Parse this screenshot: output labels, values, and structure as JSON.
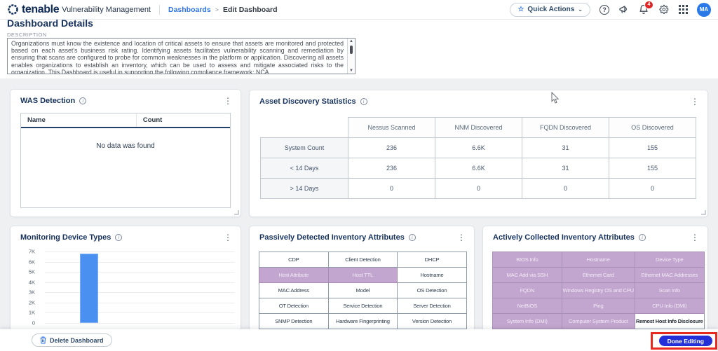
{
  "nav": {
    "brand": "tenable",
    "product": "Vulnerability Management",
    "breadcrumb": {
      "parent": "Dashboards",
      "separator": ">",
      "current": "Edit Dashboard"
    },
    "quick_actions_label": "Quick Actions",
    "star_glyph": "☆",
    "chevron_glyph": "⌄",
    "help_glyph": "?",
    "notification_count": "4",
    "avatar_initials": "MA"
  },
  "details": {
    "title": "Dashboard Details",
    "description_label": "DESCRIPTION",
    "description_text": "Organizations must know the existence and location of critical assets to ensure that assets are monitored and protected based on each asset's business risk rating. Identifying assets facilitates vulnerability scanning and remediation by ensuring that scans are configured to probe for common weaknesses in the platform or application. Discovering all assets enables organizations to establish an inventory, which can be used to assess and mitigate associated risks to the organization. This Dashboard is useful in supporting the following compliance framework: NCA.",
    "scroll_up_glyph": "▲",
    "scroll_down_glyph": "▼"
  },
  "widgets": {
    "kebab_glyph": "⋮",
    "info_glyph": "i",
    "was_detection": {
      "title": "WAS Detection",
      "columns": [
        "Name",
        "Count"
      ],
      "empty_message": "No data was found"
    },
    "asset_discovery": {
      "title": "Asset Discovery Statistics",
      "columns": [
        "Nessus Scanned",
        "NNM Discovered",
        "FQDN Discovered",
        "OS Discovered"
      ],
      "rows": [
        {
          "label": "System Count",
          "values": [
            "236",
            "6.6K",
            "31",
            "155"
          ]
        },
        {
          "label": "< 14 Days",
          "values": [
            "236",
            "6.6K",
            "31",
            "155"
          ]
        },
        {
          "label": "> 14 Days",
          "values": [
            "0",
            "0",
            "0",
            "0"
          ]
        }
      ]
    },
    "monitoring": {
      "title": "Monitoring Device Types"
    },
    "passive": {
      "title": "Passively Detected Inventory Attributes",
      "cells": [
        {
          "label": "CDP",
          "highlighted": false
        },
        {
          "label": "Client Detection",
          "highlighted": false
        },
        {
          "label": "DHCP",
          "highlighted": false
        },
        {
          "label": "Host Attribute",
          "highlighted": true
        },
        {
          "label": "Host TTL",
          "highlighted": true
        },
        {
          "label": "Hostname",
          "highlighted": false
        },
        {
          "label": "MAC Address",
          "highlighted": false
        },
        {
          "label": "Model",
          "highlighted": false
        },
        {
          "label": "OS Detection",
          "highlighted": false
        },
        {
          "label": "OT Detection",
          "highlighted": false
        },
        {
          "label": "Service Detection",
          "highlighted": false
        },
        {
          "label": "Server Detection",
          "highlighted": false
        },
        {
          "label": "SNMP Detection",
          "highlighted": false
        },
        {
          "label": "Hardware Fingerprinting",
          "highlighted": false
        },
        {
          "label": "Version Detection",
          "highlighted": false
        }
      ]
    },
    "active": {
      "title": "Actively Collected Inventory Attributes",
      "cells": [
        {
          "label": "BIOS Info",
          "highlighted": true
        },
        {
          "label": "Hostname",
          "highlighted": true
        },
        {
          "label": "Device Type",
          "highlighted": true
        },
        {
          "label": "MAC Add via SSH",
          "highlighted": true
        },
        {
          "label": "Ethernet Card",
          "highlighted": true
        },
        {
          "label": "Ethernet MAC Addresses",
          "highlighted": true
        },
        {
          "label": "FQDN",
          "highlighted": true
        },
        {
          "label": "Windows Registry OS and CPU",
          "highlighted": true
        },
        {
          "label": "Scan Info",
          "highlighted": true
        },
        {
          "label": "NetBIOS",
          "highlighted": true
        },
        {
          "label": "Ping",
          "highlighted": true
        },
        {
          "label": "CPU Info (DMI)",
          "highlighted": true
        },
        {
          "label": "System Info (DMI)",
          "highlighted": true
        },
        {
          "label": "Computer System Product",
          "highlighted": true
        },
        {
          "label": "Remost Host Info Disclosure",
          "highlighted": false
        }
      ]
    }
  },
  "chart_data": {
    "type": "bar",
    "title": "Monitoring Device Types",
    "categories": [
      ""
    ],
    "values": [
      6800
    ],
    "series": [
      {
        "name": "Monitoring Device Types",
        "values": [
          6800
        ]
      }
    ],
    "xlabel": "",
    "ylabel": "",
    "ylim": [
      0,
      7000
    ],
    "yticks": [
      "7K",
      "6K",
      "5K",
      "4K",
      "3K",
      "2K",
      "1K",
      "0"
    ],
    "grid": true,
    "legend": false,
    "bar_color": "#4a90f0"
  },
  "footer": {
    "delete_label": "Delete Dashboard",
    "done_label": "Done Editing"
  },
  "colors": {
    "brand_navy": "#0e2a57",
    "link_blue": "#2f73e0",
    "bar_blue": "#4a90f0",
    "highlight_purple": "#c3a6cf",
    "done_button_blue": "#2330d8",
    "annotation_red": "#e62b1e",
    "badge_red": "#e02323"
  }
}
